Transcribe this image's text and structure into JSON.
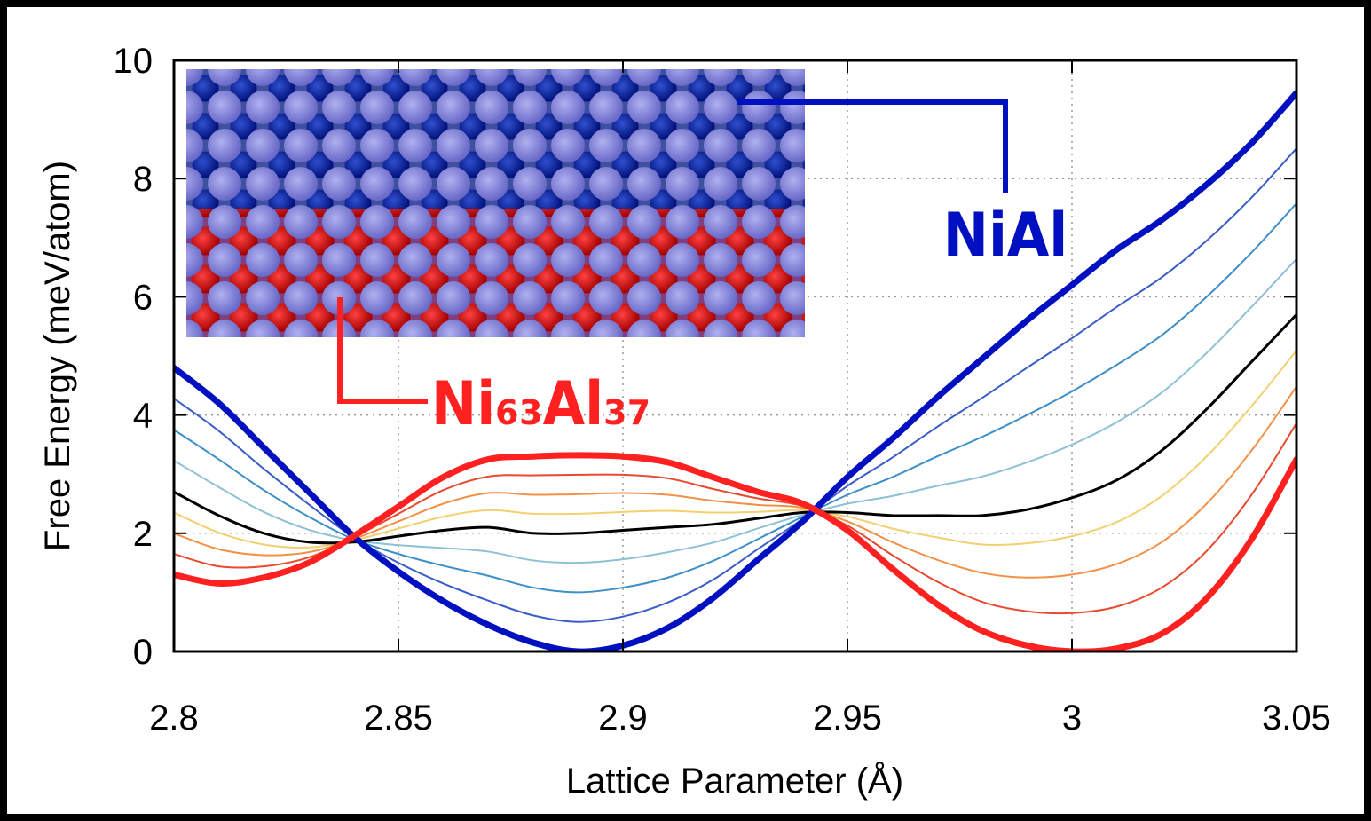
{
  "chart_data": {
    "type": "line",
    "xlabel": "Lattice Parameter (Å)",
    "ylabel": "Free Energy (meV/atom)",
    "x": [
      2.8,
      2.81,
      2.82,
      2.83,
      2.84,
      2.85,
      2.86,
      2.87,
      2.88,
      2.89,
      2.9,
      2.91,
      2.92,
      2.93,
      2.94,
      2.95,
      2.96,
      2.97,
      2.98,
      2.99,
      3.0,
      3.01,
      3.02,
      3.03,
      3.04,
      3.05
    ],
    "xlim": [
      2.8,
      3.05
    ],
    "xticks": [
      2.8,
      2.85,
      2.9,
      2.95,
      3,
      3.05
    ],
    "ylim": [
      0,
      10
    ],
    "yticks": [
      0,
      2,
      4,
      6,
      8,
      10
    ],
    "grid": true,
    "series": [
      {
        "color": "#3a5cc8",
        "linewidth": 2,
        "values": [
          4.28,
          3.73,
          3.09,
          2.49,
          1.93,
          1.5,
          1.15,
          0.86,
          0.61,
          0.5,
          0.59,
          0.83,
          1.21,
          1.73,
          2.24,
          2.8,
          3.28,
          3.8,
          4.29,
          4.8,
          5.3,
          5.83,
          6.33,
          6.95,
          7.68,
          8.51
        ]
      },
      {
        "color": "#3d8fc8",
        "linewidth": 2,
        "values": [
          3.75,
          3.25,
          2.73,
          2.28,
          1.9,
          1.65,
          1.45,
          1.28,
          1.08,
          1.0,
          1.08,
          1.25,
          1.53,
          1.9,
          2.28,
          2.65,
          2.95,
          3.3,
          3.63,
          4.0,
          4.4,
          4.85,
          5.35,
          6.0,
          6.75,
          7.58
        ]
      },
      {
        "color": "#8ec0d6",
        "linewidth": 2,
        "values": [
          3.23,
          2.78,
          2.36,
          2.06,
          1.88,
          1.8,
          1.75,
          1.69,
          1.54,
          1.5,
          1.56,
          1.68,
          1.84,
          2.08,
          2.31,
          2.5,
          2.63,
          2.8,
          2.96,
          3.2,
          3.5,
          3.88,
          4.38,
          5.05,
          5.83,
          6.64
        ]
      },
      {
        "color": "#f2d070",
        "linewidth": 2,
        "values": [
          2.35,
          2.01,
          1.81,
          1.76,
          1.88,
          2.08,
          2.28,
          2.39,
          2.33,
          2.33,
          2.36,
          2.38,
          2.35,
          2.36,
          2.39,
          2.28,
          2.08,
          1.93,
          1.81,
          1.83,
          1.95,
          2.19,
          2.63,
          3.3,
          4.15,
          5.09
        ]
      },
      {
        "color": "#f39048",
        "linewidth": 2,
        "values": [
          2.0,
          1.73,
          1.63,
          1.68,
          1.9,
          2.2,
          2.5,
          2.68,
          2.65,
          2.66,
          2.68,
          2.65,
          2.55,
          2.48,
          2.43,
          2.2,
          1.85,
          1.55,
          1.33,
          1.25,
          1.3,
          1.48,
          1.85,
          2.5,
          3.4,
          4.48
        ]
      },
      {
        "color": "#e84a30",
        "linewidth": 2,
        "values": [
          1.65,
          1.44,
          1.44,
          1.59,
          1.93,
          2.33,
          2.73,
          2.96,
          2.98,
          2.99,
          2.99,
          2.93,
          2.75,
          2.59,
          2.46,
          2.13,
          1.63,
          1.18,
          0.84,
          0.68,
          0.65,
          0.76,
          1.08,
          1.7,
          2.65,
          3.86
        ]
      },
      {
        "color": "#000000",
        "linewidth": 3,
        "values": [
          2.7,
          2.3,
          2.0,
          1.85,
          1.85,
          1.95,
          2.05,
          2.1,
          2.0,
          2.0,
          2.05,
          2.1,
          2.15,
          2.25,
          2.35,
          2.35,
          2.3,
          2.3,
          2.3,
          2.4,
          2.6,
          2.9,
          3.4,
          4.1,
          4.9,
          5.7
        ]
      },
      {
        "color": "#0010c0",
        "linewidth": 7,
        "values": [
          4.8,
          4.2,
          3.45,
          2.7,
          1.95,
          1.35,
          0.85,
          0.45,
          0.15,
          0.0,
          0.1,
          0.4,
          0.9,
          1.55,
          2.2,
          2.95,
          3.6,
          4.3,
          4.95,
          5.6,
          6.2,
          6.8,
          7.3,
          7.9,
          8.6,
          9.45
        ]
      },
      {
        "color": "#ff2020",
        "linewidth": 7,
        "values": [
          1.3,
          1.15,
          1.25,
          1.5,
          1.95,
          2.45,
          2.95,
          3.25,
          3.3,
          3.32,
          3.3,
          3.2,
          2.95,
          2.7,
          2.5,
          2.05,
          1.4,
          0.8,
          0.35,
          0.1,
          0.0,
          0.05,
          0.3,
          0.9,
          1.9,
          3.25
        ]
      }
    ],
    "annotations": [
      {
        "text": "NiAl",
        "color": "#0010c0"
      },
      {
        "text": "Ni₆₃Al₃₇",
        "color": "#ff2020"
      }
    ]
  }
}
